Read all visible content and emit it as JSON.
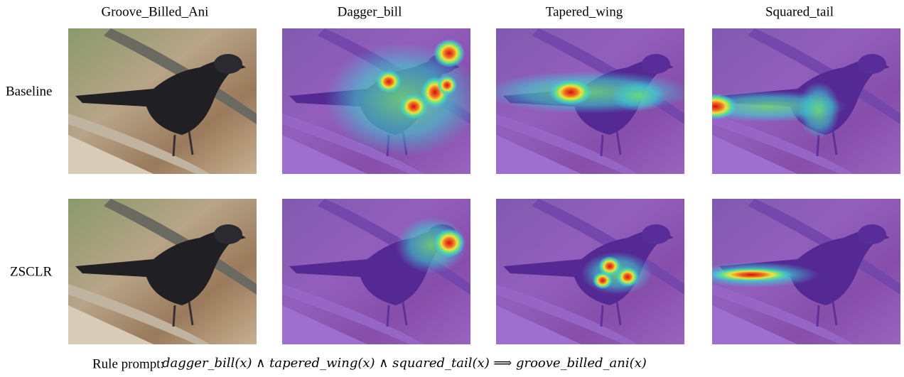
{
  "columns": [
    "Groove_Billed_Ani",
    "Dagger_bill",
    "Tapered_wing",
    "Squared_tail"
  ],
  "rows": [
    "Baseline",
    "ZSCLR"
  ],
  "rule": {
    "label": "Rule prompt:",
    "formula": "dagger_bill(x) ∧ tapered_wing(x) ∧ squared_tail(x) ⟹ groove_billed_ani(x)"
  }
}
